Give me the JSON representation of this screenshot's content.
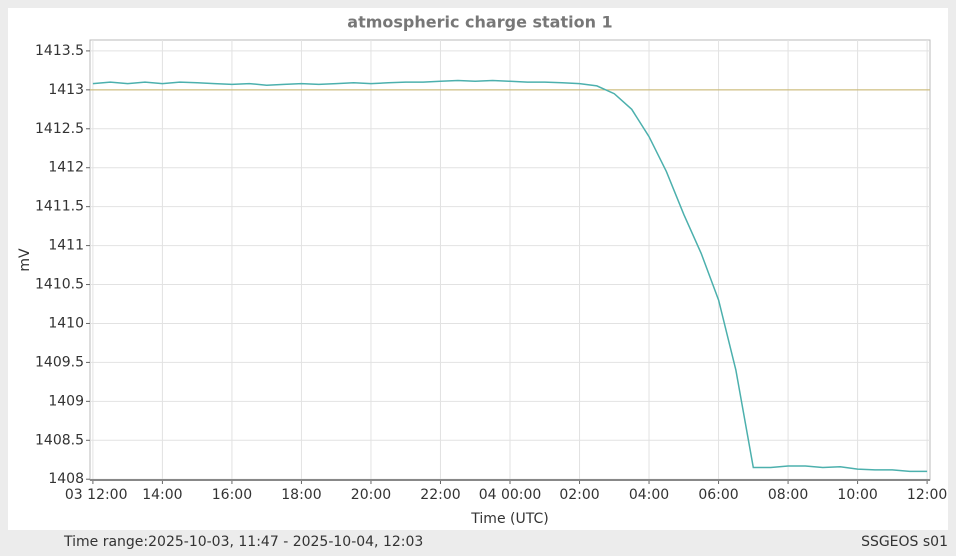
{
  "chart_data": {
    "type": "line",
    "title": "atmospheric charge station 1",
    "x_label": "Time (UTC)",
    "y_label": "mV",
    "x": [
      "2025-10-03T12:00",
      "2025-10-03T12:30",
      "2025-10-03T13:00",
      "2025-10-03T13:30",
      "2025-10-03T14:00",
      "2025-10-03T14:30",
      "2025-10-03T15:00",
      "2025-10-03T15:30",
      "2025-10-03T16:00",
      "2025-10-03T16:30",
      "2025-10-03T17:00",
      "2025-10-03T17:30",
      "2025-10-03T18:00",
      "2025-10-03T18:30",
      "2025-10-03T19:00",
      "2025-10-03T19:30",
      "2025-10-03T20:00",
      "2025-10-03T20:30",
      "2025-10-03T21:00",
      "2025-10-03T21:30",
      "2025-10-03T22:00",
      "2025-10-03T22:30",
      "2025-10-03T23:00",
      "2025-10-03T23:30",
      "2025-10-04T00:00",
      "2025-10-04T00:30",
      "2025-10-04T01:00",
      "2025-10-04T01:30",
      "2025-10-04T02:00",
      "2025-10-04T02:30",
      "2025-10-04T03:00",
      "2025-10-04T03:30",
      "2025-10-04T04:00",
      "2025-10-04T04:30",
      "2025-10-04T05:00",
      "2025-10-04T05:30",
      "2025-10-04T06:00",
      "2025-10-04T06:30",
      "2025-10-04T07:00",
      "2025-10-04T07:30",
      "2025-10-04T08:00",
      "2025-10-04T08:30",
      "2025-10-04T09:00",
      "2025-10-04T09:30",
      "2025-10-04T10:00",
      "2025-10-04T10:30",
      "2025-10-04T11:00",
      "2025-10-04T11:30",
      "2025-10-04T12:00"
    ],
    "series": [
      {
        "name": "station 1",
        "color": "#4cb0ad",
        "values": [
          1413.08,
          1413.1,
          1413.08,
          1413.1,
          1413.08,
          1413.1,
          1413.09,
          1413.08,
          1413.07,
          1413.08,
          1413.06,
          1413.07,
          1413.08,
          1413.07,
          1413.08,
          1413.09,
          1413.08,
          1413.09,
          1413.1,
          1413.1,
          1413.11,
          1413.12,
          1413.11,
          1413.12,
          1413.11,
          1413.1,
          1413.1,
          1413.09,
          1413.08,
          1413.05,
          1412.95,
          1412.75,
          1412.4,
          1411.95,
          1411.4,
          1410.9,
          1410.3,
          1409.4,
          1408.15,
          1408.15,
          1408.17,
          1408.17,
          1408.15,
          1408.16,
          1408.13,
          1408.12,
          1408.12,
          1408.1,
          1408.1
        ]
      }
    ],
    "reference_line": {
      "value": 1413,
      "color": "#c8b46a"
    },
    "xlim": [
      "2025-10-03T11:55",
      "2025-10-04T12:05"
    ],
    "xticks": [
      {
        "value": "2025-10-03T12:00",
        "label": "03 12:00"
      },
      {
        "value": "2025-10-03T14:00",
        "label": "14:00"
      },
      {
        "value": "2025-10-03T16:00",
        "label": "16:00"
      },
      {
        "value": "2025-10-03T18:00",
        "label": "18:00"
      },
      {
        "value": "2025-10-03T20:00",
        "label": "20:00"
      },
      {
        "value": "2025-10-03T22:00",
        "label": "22:00"
      },
      {
        "value": "2025-10-04T00:00",
        "label": "04 00:00"
      },
      {
        "value": "2025-10-04T02:00",
        "label": "02:00"
      },
      {
        "value": "2025-10-04T04:00",
        "label": "04:00"
      },
      {
        "value": "2025-10-04T06:00",
        "label": "06:00"
      },
      {
        "value": "2025-10-04T08:00",
        "label": "08:00"
      },
      {
        "value": "2025-10-04T10:00",
        "label": "10:00"
      },
      {
        "value": "2025-10-04T12:00",
        "label": "12:00"
      }
    ],
    "ylim": [
      1407.99,
      1413.64
    ],
    "yticks": [
      1408,
      1408.5,
      1409,
      1409.5,
      1410,
      1410.5,
      1411,
      1411.5,
      1412,
      1412.5,
      1413,
      1413.5
    ],
    "grid": true
  },
  "footer": {
    "time_range": "Time range:2025-10-03, 11:47 - 2025-10-04, 12:03",
    "station": "SSGEOS s01"
  }
}
